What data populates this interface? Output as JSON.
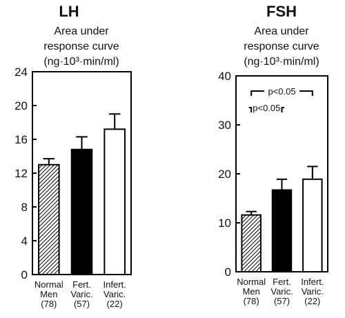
{
  "chart_data": [
    {
      "type": "bar",
      "title": "LH",
      "subtitle": [
        "Area under",
        "response curve",
        "(ng·10³·min/ml)"
      ],
      "ylim": [
        0,
        24
      ],
      "yticks": [
        0,
        4,
        8,
        12,
        16,
        20,
        24
      ],
      "grid": false,
      "categories": [
        [
          "Normal",
          "Men",
          "(78)"
        ],
        [
          "Fert.",
          "Varic.",
          "(57)"
        ],
        [
          "Infert.",
          "Varic.",
          "(22)"
        ]
      ],
      "values": [
        13.0,
        14.8,
        17.2
      ],
      "errors": [
        0.7,
        1.5,
        1.8
      ],
      "fills": [
        "hatched",
        "#000000",
        "#ffffff"
      ],
      "annotations": []
    },
    {
      "type": "bar",
      "title": "FSH",
      "subtitle": [
        "Area under",
        "response curve",
        "(ng·10³·min/ml)"
      ],
      "ylim": [
        0,
        40
      ],
      "yticks": [
        0,
        10,
        20,
        30,
        40
      ],
      "grid": false,
      "categories": [
        [
          "Normal",
          "Men",
          "(78)"
        ],
        [
          "Fert.",
          "Varic.",
          "(57)"
        ],
        [
          "Infert.",
          "Varic.",
          "(22)"
        ]
      ],
      "values": [
        11.6,
        16.7,
        18.9
      ],
      "errors": [
        0.7,
        2.2,
        2.6
      ],
      "fills": [
        "hatched",
        "#000000",
        "#ffffff"
      ],
      "annotations": [
        {
          "text": "p<0.05",
          "from": 0,
          "to": 2
        },
        {
          "text": "p<0.05",
          "from": 0,
          "to": 1
        }
      ]
    }
  ]
}
